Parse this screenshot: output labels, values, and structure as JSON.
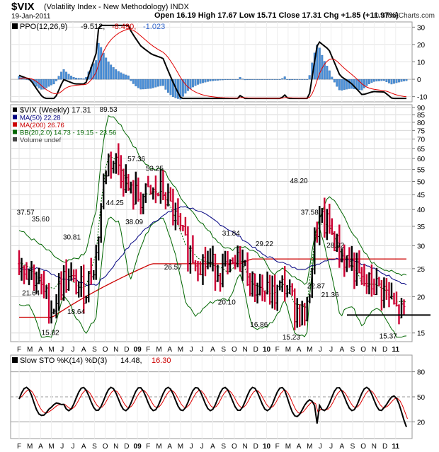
{
  "header": {
    "symbol": "$VIX",
    "name": "(Volatility Index - New Methodology) INDX",
    "date": "19-Jan-2011",
    "ohlc": "Open 16.19 High 17.67 Low 15.71 Close 17.31 Chg +1.85 (+11.97%)",
    "brand": "© StockCharts.com"
  },
  "ppo_panel": {
    "label": "PPO(12,26,9)",
    "val1": "-9.512,",
    "val2": "-8.490,",
    "val3": "-1.023",
    "col_val2": "#cc0000",
    "col_val3": "#3366cc",
    "yticks": [
      "30",
      "20",
      "10",
      "0",
      "-10"
    ]
  },
  "main_panel": {
    "legend": [
      {
        "text": "$VIX (Weekly) 17.31",
        "color": "#000000",
        "icon": "bar"
      },
      {
        "text": "MA(50) 22.28",
        "color": "#000080",
        "icon": "line"
      },
      {
        "text": "MA(200) 26.76",
        "color": "#cc0000",
        "icon": "line"
      },
      {
        "text": "BB(20,2.0) 14.73 - 19.15 - 23.56",
        "color": "#006600",
        "icon": "line"
      },
      {
        "text": "Volume undef",
        "color": "#444444",
        "icon": "vol"
      }
    ],
    "yticks": [
      "90",
      "85",
      "80",
      "75",
      "70",
      "65",
      "60",
      "55",
      "50",
      "45",
      "40",
      "35",
      "30",
      "25",
      "20",
      "15"
    ],
    "annotations": [
      "37.57",
      "35.60",
      "30.81",
      "21.64",
      "18.64",
      "15.82",
      "89.53",
      "57.36",
      "53.25",
      "44.25",
      "38.09",
      "26.57",
      "31.84",
      "29.22",
      "20.10",
      "16.86",
      "48.20",
      "37.58",
      "28.92",
      "22.87",
      "21.36",
      "15.23",
      "15.37"
    ]
  },
  "sto_panel": {
    "label": "Slow STO %K(14) %D(3)",
    "val1": "14.48,",
    "val2": "16.30",
    "col_val2": "#cc0000",
    "yticks": [
      "80",
      "50",
      "20"
    ]
  },
  "xaxis": {
    "months": [
      "F",
      "M",
      "A",
      "M",
      "J",
      "J",
      "A",
      "S",
      "O",
      "N",
      "D",
      "09",
      "F",
      "M",
      "A",
      "M",
      "J",
      "J",
      "A",
      "S",
      "O",
      "N",
      "D",
      "10",
      "F",
      "M",
      "A",
      "M",
      "J",
      "J",
      "A",
      "S",
      "O",
      "N",
      "D",
      "11"
    ]
  },
  "chart_data": {
    "type": "line",
    "title": "$VIX (Volatility Index - New Methodology) INDX",
    "frequency": "weekly",
    "x": [
      "2008-02",
      "2008-03",
      "2008-04",
      "2008-05",
      "2008-06",
      "2008-07",
      "2008-08",
      "2008-09",
      "2008-10",
      "2008-11",
      "2008-12",
      "2009-01",
      "2009-02",
      "2009-03",
      "2009-04",
      "2009-05",
      "2009-06",
      "2009-07",
      "2009-08",
      "2009-09",
      "2009-10",
      "2009-11",
      "2009-12",
      "2010-01",
      "2010-02",
      "2010-03",
      "2010-04",
      "2010-05",
      "2010-06",
      "2010-07",
      "2010-08",
      "2010-09",
      "2010-10",
      "2010-11",
      "2010-12",
      "2011-01"
    ],
    "series": [
      {
        "name": "$VIX (Weekly)",
        "values": [
          26,
          25,
          21,
          18,
          23,
          22,
          21,
          28,
          60,
          57,
          45,
          44,
          45,
          46,
          38,
          30,
          27,
          26,
          25,
          24,
          27,
          22,
          21,
          20,
          22,
          18,
          17,
          36,
          35,
          28,
          26,
          22,
          22,
          21,
          18,
          17
        ]
      },
      {
        "name": "MA(50)",
        "values": [
          25,
          25,
          25,
          24,
          23,
          23,
          22,
          22,
          24,
          27,
          30,
          33,
          36,
          38,
          40,
          41,
          40,
          38,
          36,
          34,
          32,
          30,
          28,
          27,
          26,
          25,
          25,
          26,
          27,
          27,
          27,
          26,
          25,
          24,
          23,
          22
        ]
      },
      {
        "name": "MA(200)",
        "values": [
          17,
          17,
          17,
          17,
          18,
          19,
          20,
          21,
          22,
          23,
          24,
          25,
          26,
          26,
          26,
          26,
          26,
          26,
          26,
          26,
          26,
          27,
          27,
          27,
          27,
          27,
          27,
          27,
          27,
          27,
          27,
          27,
          27,
          27,
          27,
          27
        ]
      },
      {
        "name": "BB(20,2.0)",
        "values": [
          34,
          32,
          30,
          28,
          26,
          27,
          28,
          40,
          85,
          80,
          70,
          60,
          55,
          55,
          48,
          42,
          38,
          34,
          31,
          29,
          30,
          29,
          27,
          24,
          25,
          23,
          22,
          36,
          45,
          40,
          34,
          29,
          26,
          25,
          24,
          24
        ]
      }
    ],
    "annotations": {
      "high": 89.53,
      "low": 15.23,
      "last": 17.31
    },
    "ylim": [
      14,
      92
    ],
    "yscale": "log",
    "horizontal_line": 17.3,
    "grid": true
  }
}
